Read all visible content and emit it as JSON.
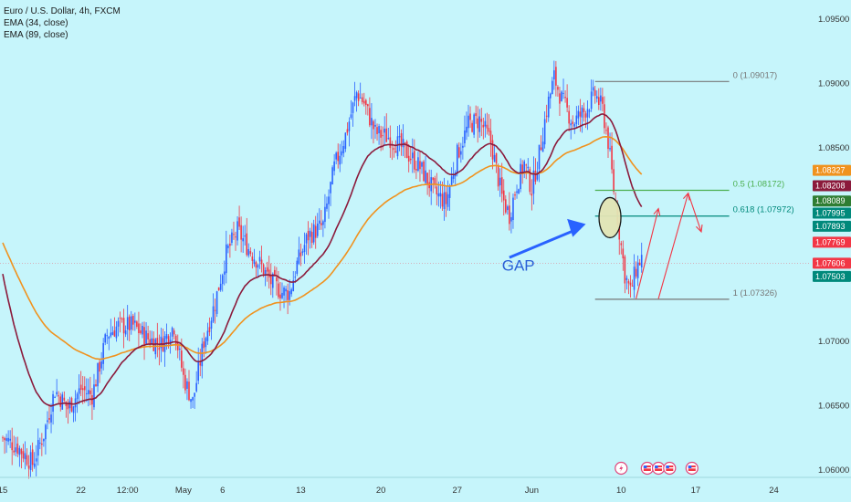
{
  "legend": {
    "symbol": "Euro / U.S. Dollar, 4h, FXCM",
    "ema34": "EMA (34, close)",
    "ema89": "EMA (89, close)"
  },
  "colors": {
    "background": "#c6f5fb",
    "up": "#2962ff",
    "down": "#f23645",
    "ema34": "#8b1a3b",
    "ema89": "#f0921e",
    "fib_0": "#777777",
    "fib_05": "#4caf50",
    "fib_0618": "#00897b",
    "fib_1": "#777777",
    "annotation_red": "#f23645",
    "annotation_blue": "#2962ff"
  },
  "chart_data": {
    "type": "candlestick",
    "ylim": [
      1.0595,
      1.0965
    ],
    "y_ticks": [
      {
        "value": 1.095,
        "label": "1.09500"
      },
      {
        "value": 1.09,
        "label": "1.09000"
      },
      {
        "value": 1.085,
        "label": "1.08500"
      },
      {
        "value": 1.07,
        "label": "1.07000"
      },
      {
        "value": 1.065,
        "label": "1.06500"
      },
      {
        "value": 1.06,
        "label": "1.06000"
      }
    ],
    "x_ticks": [
      {
        "label": "15",
        "bar": 0
      },
      {
        "label": "22",
        "bar": 42
      },
      {
        "label": "12:00",
        "bar": 67
      },
      {
        "label": "May",
        "bar": 97
      },
      {
        "label": "6",
        "bar": 118
      },
      {
        "label": "13",
        "bar": 160
      },
      {
        "label": "20",
        "bar": 203
      },
      {
        "label": "27",
        "bar": 244
      },
      {
        "label": "Jun",
        "bar": 284
      },
      {
        "label": "10",
        "bar": 332
      },
      {
        "label": "17",
        "bar": 372
      },
      {
        "label": "24",
        "bar": 414
      }
    ],
    "price_labels": [
      {
        "label": "1.08327",
        "value": 1.08327,
        "color": "#f0921e"
      },
      {
        "label": "1.08208",
        "value": 1.08208,
        "color": "#8b1a3b"
      },
      {
        "label": "1.08089",
        "value": 1.08089,
        "color": "#2e7d32"
      },
      {
        "label": "1.07995",
        "value": 1.07995,
        "color": "#00897b"
      },
      {
        "label": "1.07893",
        "value": 1.07893,
        "color": "#00897b"
      },
      {
        "label": "1.07769",
        "value": 1.07769,
        "color": "#f23645"
      },
      {
        "label": "1.07606",
        "value": 1.07606,
        "color": "#f23645"
      },
      {
        "label": "1.07503",
        "value": 1.07503,
        "color": "#00897b"
      }
    ],
    "current_price": 1.07606,
    "fib_levels": [
      {
        "label": "0 (1.09017)",
        "value": 1.09017,
        "color": "#777777"
      },
      {
        "label": "0.5 (1.08172)",
        "value": 1.08172,
        "color": "#4caf50"
      },
      {
        "label": "0.618 (1.07972)",
        "value": 1.07972,
        "color": "#00897b"
      },
      {
        "label": "1 (1.07326)",
        "value": 1.07326,
        "color": "#777777"
      }
    ],
    "fib_bar_range": [
      318,
      390
    ],
    "anchors": [
      [
        0,
        1.0625
      ],
      [
        8,
        1.0618
      ],
      [
        16,
        1.0605
      ],
      [
        22,
        1.0628
      ],
      [
        28,
        1.0662
      ],
      [
        35,
        1.0648
      ],
      [
        42,
        1.0663
      ],
      [
        48,
        1.0658
      ],
      [
        56,
        1.0705
      ],
      [
        62,
        1.0712
      ],
      [
        70,
        1.0712
      ],
      [
        78,
        1.0702
      ],
      [
        85,
        1.0698
      ],
      [
        92,
        1.0712
      ],
      [
        97,
        1.0672
      ],
      [
        102,
        1.0653
      ],
      [
        108,
        1.07
      ],
      [
        114,
        1.073
      ],
      [
        120,
        1.0768
      ],
      [
        126,
        1.0786
      ],
      [
        132,
        1.0772
      ],
      [
        138,
        1.076
      ],
      [
        144,
        1.0746
      ],
      [
        150,
        1.0738
      ],
      [
        154,
        1.0738
      ],
      [
        158,
        1.076
      ],
      [
        164,
        1.0782
      ],
      [
        172,
        1.079
      ],
      [
        178,
        1.0835
      ],
      [
        184,
        1.086
      ],
      [
        190,
        1.0893
      ],
      [
        194,
        1.0885
      ],
      [
        200,
        1.0862
      ],
      [
        208,
        1.0858
      ],
      [
        216,
        1.0848
      ],
      [
        224,
        1.0835
      ],
      [
        232,
        1.0815
      ],
      [
        238,
        1.0808
      ],
      [
        244,
        1.0845
      ],
      [
        250,
        1.0868
      ],
      [
        256,
        1.0872
      ],
      [
        262,
        1.0855
      ],
      [
        268,
        1.0812
      ],
      [
        272,
        1.0798
      ],
      [
        276,
        1.0822
      ],
      [
        280,
        1.0838
      ],
      [
        284,
        1.0818
      ],
      [
        288,
        1.0845
      ],
      [
        292,
        1.088
      ],
      [
        296,
        1.0905
      ],
      [
        300,
        1.0888
      ],
      [
        306,
        1.087
      ],
      [
        312,
        1.0878
      ],
      [
        318,
        1.0892
      ],
      [
        322,
        1.088
      ],
      [
        325,
        1.0855
      ],
      [
        328,
        1.0818
      ],
      [
        331,
        1.0785
      ],
      [
        334,
        1.0752
      ],
      [
        337,
        1.0738
      ],
      [
        340,
        1.0756
      ],
      [
        343,
        1.0765
      ]
    ],
    "annotations": {
      "gap_label": "GAP",
      "gap_circle_center": [
        1.0796,
        326
      ],
      "arrow_up_1": {
        "from": [
          1.0733,
          340
        ],
        "to": [
          1.0803,
          352
        ]
      },
      "arrow_up_2": {
        "from": [
          1.0733,
          352
        ],
        "to": [
          1.0815,
          368
        ]
      },
      "arrow_down": {
        "from": [
          1.0815,
          368
        ],
        "to": [
          1.0785,
          375
        ]
      }
    }
  },
  "events": [
    "lightning-icon",
    "us-flag-icon",
    "us-flag-icon",
    "us-flag-icon",
    "us-flag-icon"
  ]
}
